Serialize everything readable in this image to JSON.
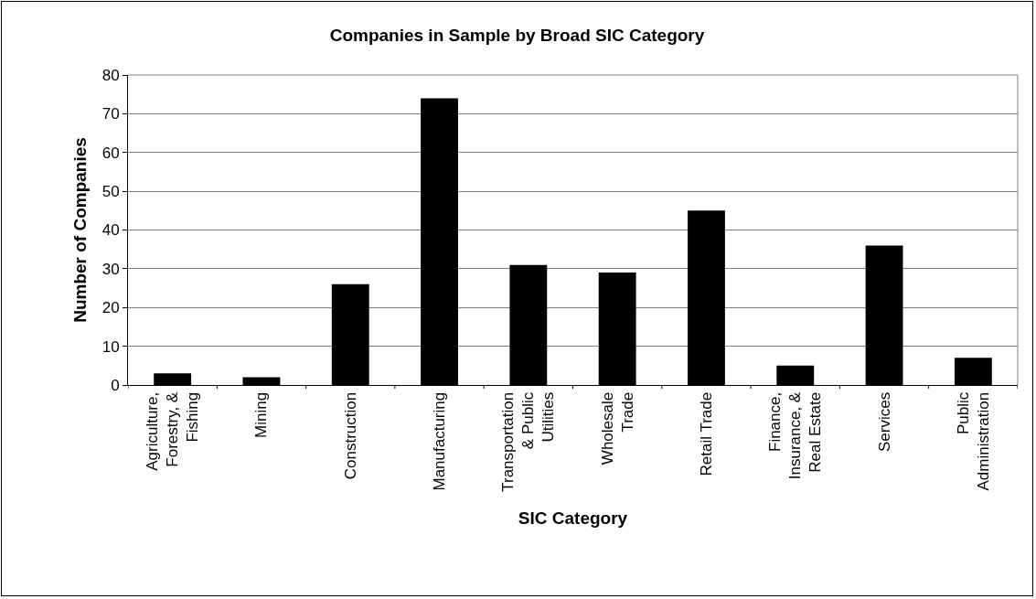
{
  "chart_data": {
    "type": "bar",
    "title": "Companies in Sample by Broad SIC Category",
    "xlabel": "SIC Category",
    "ylabel": "Number of Companies",
    "categories": [
      "Agriculture,\nForestry, &\nFishing",
      "Mining",
      "Construction",
      "Manufacturing",
      "Transportation\n& Public\nUtilities",
      "Wholesale\nTrade",
      "Retail Trade",
      "Finance,\nInsurance, &\nReal Estate",
      "Services",
      "Public\nAdministration"
    ],
    "values": [
      3,
      2,
      26,
      74,
      31,
      29,
      45,
      5,
      36,
      7
    ],
    "color": "#000000",
    "ylim": [
      0,
      80
    ],
    "yticks": [
      0,
      10,
      20,
      30,
      40,
      50,
      60,
      70,
      80
    ],
    "grid": "y",
    "legend": false
  }
}
